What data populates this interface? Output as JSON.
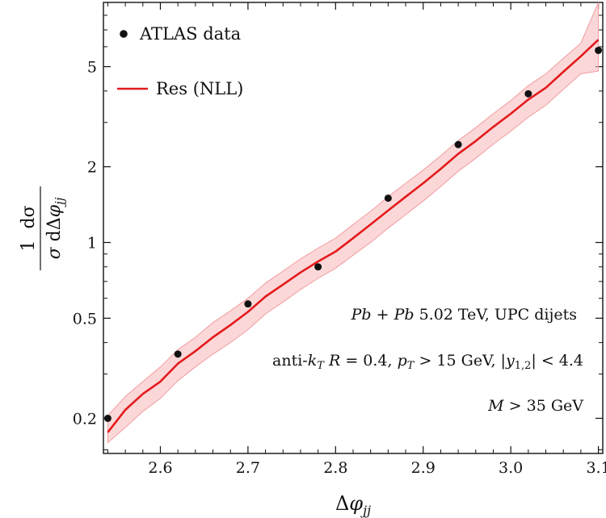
{
  "chart_data": {
    "type": "line",
    "xlabel": "Δφ_jj",
    "ylabel_num": "1  dσ",
    "ylabel_den": "σ dΔφ_jj",
    "xlim": [
      2.535,
      3.105
    ],
    "ylim": [
      0.145,
      9.0
    ],
    "y_scale": "log",
    "x_ticks": [
      2.6,
      2.7,
      2.8,
      2.9,
      3.0,
      3.1
    ],
    "x_tick_labels": [
      "2.6",
      "2.7",
      "2.8",
      "2.9",
      "3.0",
      "3.1"
    ],
    "y_ticks": [
      0.2,
      0.5,
      1,
      2,
      5
    ],
    "y_tick_labels": [
      "0.2",
      "0.5",
      "1",
      "2",
      "5"
    ],
    "grid": false,
    "legend_position": "top-left",
    "series": [
      {
        "name": "ATLAS data",
        "kind": "points",
        "color": "#111111",
        "x": [
          2.54,
          2.62,
          2.7,
          2.78,
          2.86,
          2.94,
          3.02,
          3.1
        ],
        "y": [
          0.2,
          0.36,
          0.57,
          0.8,
          1.5,
          2.45,
          3.9,
          5.8
        ]
      },
      {
        "name": "Res (NLL)",
        "kind": "line",
        "color": "#e41a1c",
        "band_color": "#f7b6b8",
        "x": [
          2.54,
          2.56,
          2.58,
          2.6,
          2.62,
          2.64,
          2.66,
          2.68,
          2.7,
          2.72,
          2.74,
          2.76,
          2.78,
          2.8,
          2.82,
          2.84,
          2.86,
          2.88,
          2.9,
          2.92,
          2.94,
          2.96,
          2.98,
          3.0,
          3.02,
          3.04,
          3.06,
          3.08,
          3.1
        ],
        "y": [
          0.176,
          0.216,
          0.25,
          0.28,
          0.33,
          0.37,
          0.42,
          0.47,
          0.53,
          0.61,
          0.68,
          0.76,
          0.84,
          0.92,
          1.04,
          1.18,
          1.34,
          1.52,
          1.72,
          1.96,
          2.25,
          2.53,
          2.88,
          3.25,
          3.7,
          4.12,
          4.77,
          5.5,
          6.4
        ],
        "lower": [
          0.16,
          0.184,
          0.213,
          0.24,
          0.282,
          0.32,
          0.36,
          0.4,
          0.45,
          0.52,
          0.58,
          0.65,
          0.72,
          0.79,
          0.89,
          1.0,
          1.14,
          1.29,
          1.46,
          1.67,
          1.92,
          2.16,
          2.46,
          2.77,
          3.15,
          3.51,
          4.06,
          4.68,
          4.8
        ],
        "upper": [
          0.205,
          0.244,
          0.28,
          0.32,
          0.375,
          0.42,
          0.48,
          0.535,
          0.6,
          0.69,
          0.77,
          0.86,
          0.95,
          1.04,
          1.18,
          1.33,
          1.52,
          1.72,
          1.94,
          2.21,
          2.54,
          2.86,
          3.25,
          3.67,
          4.2,
          4.68,
          5.4,
          6.2,
          9.0
        ]
      }
    ],
    "annotations": [
      "Pb + Pb 5.02 TeV, UPC dijets",
      "anti-k_T  R = 0.4,  p_T > 15 GeV,  |y_1,2| < 4.4",
      "M > 35 GeV"
    ]
  }
}
